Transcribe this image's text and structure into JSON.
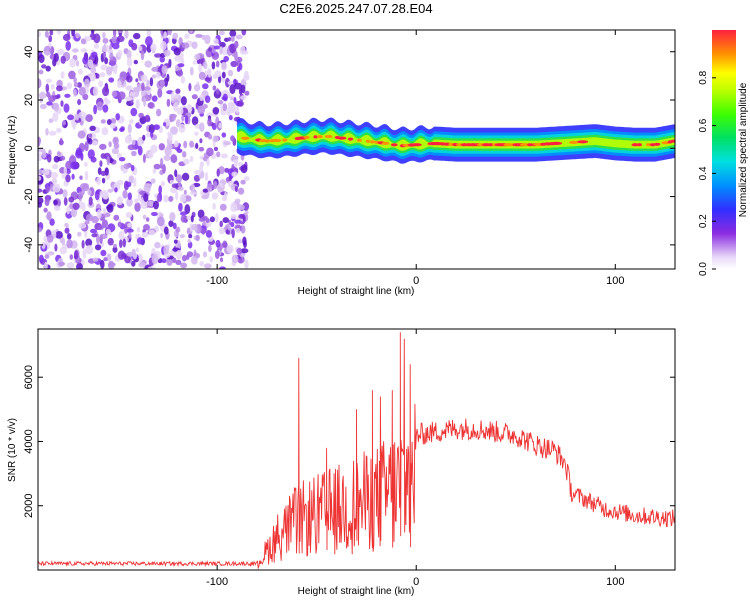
{
  "title": "C2E6.2025.247.07.28.E04",
  "chart_data": [
    {
      "type": "heatmap",
      "name": "spectrogram",
      "xlabel": "Height of straight line (km)",
      "ylabel": "Frequency (Hz)",
      "xlim": [
        -190,
        130
      ],
      "ylim": [
        -50,
        49
      ],
      "xticks": [
        -100,
        0,
        100
      ],
      "xticklabels": [
        "-100",
        "0",
        "100"
      ],
      "yticks": [
        -40,
        -20,
        0,
        20,
        40
      ],
      "yticklabels": [
        "-40",
        "-20",
        "0",
        "20",
        "40"
      ],
      "noise_region_x": [
        -190,
        -85
      ],
      "signal_ridge": {
        "x": [
          -90,
          -85,
          -75,
          -65,
          -55,
          -45,
          -35,
          -25,
          -15,
          -8,
          0,
          10,
          20,
          40,
          60,
          80,
          90,
          100,
          110,
          120,
          130
        ],
        "freq": [
          5,
          4,
          3,
          3.5,
          4.5,
          5,
          4,
          3,
          2,
          1,
          1.5,
          2,
          1.5,
          1.5,
          1.5,
          2.5,
          3,
          2,
          1.5,
          1.5,
          3
        ]
      },
      "colorbar": {
        "label": "Normalized spectral amplitude",
        "range": [
          0,
          1
        ],
        "ticks": [
          0.0,
          0.2,
          0.4,
          0.6,
          0.8
        ],
        "ticklabels": [
          "0.0",
          "0.2",
          "0.4",
          "0.6",
          "0.8"
        ]
      }
    },
    {
      "type": "line",
      "name": "snr",
      "xlabel": "Height of straight line (km)",
      "ylabel": "SNR (10 * v/v)",
      "xlim": [
        -190,
        130
      ],
      "ylim": [
        0,
        7500
      ],
      "xticks": [
        -100,
        0,
        100
      ],
      "xticklabels": [
        "-100",
        "0",
        "100"
      ],
      "yticks": [
        2000,
        4000,
        6000
      ],
      "yticklabels": [
        "2000",
        "4000",
        "6000"
      ],
      "color": "#ee3333",
      "envelope": {
        "x": [
          -190,
          -80,
          -75,
          -70,
          -60,
          -50,
          -40,
          -30,
          -20,
          -10,
          -2,
          0,
          10,
          20,
          30,
          40,
          50,
          60,
          70,
          75,
          78,
          85,
          95,
          110,
          130
        ],
        "y": [
          200,
          200,
          700,
          1200,
          1800,
          2000,
          2200,
          2400,
          2600,
          3000,
          3500,
          4200,
          4300,
          4400,
          4400,
          4300,
          4200,
          3900,
          3700,
          3300,
          2400,
          2200,
          1900,
          1700,
          1600
        ]
      },
      "spikes": [
        {
          "x": -59,
          "y": 6600
        },
        {
          "x": -45,
          "y": 3800
        },
        {
          "x": -30,
          "y": 5000
        },
        {
          "x": -22,
          "y": 5600
        },
        {
          "x": -18,
          "y": 5400
        },
        {
          "x": -12,
          "y": 5600
        },
        {
          "x": -8,
          "y": 7400
        },
        {
          "x": -6,
          "y": 7200
        },
        {
          "x": -3,
          "y": 6400
        }
      ]
    }
  ]
}
